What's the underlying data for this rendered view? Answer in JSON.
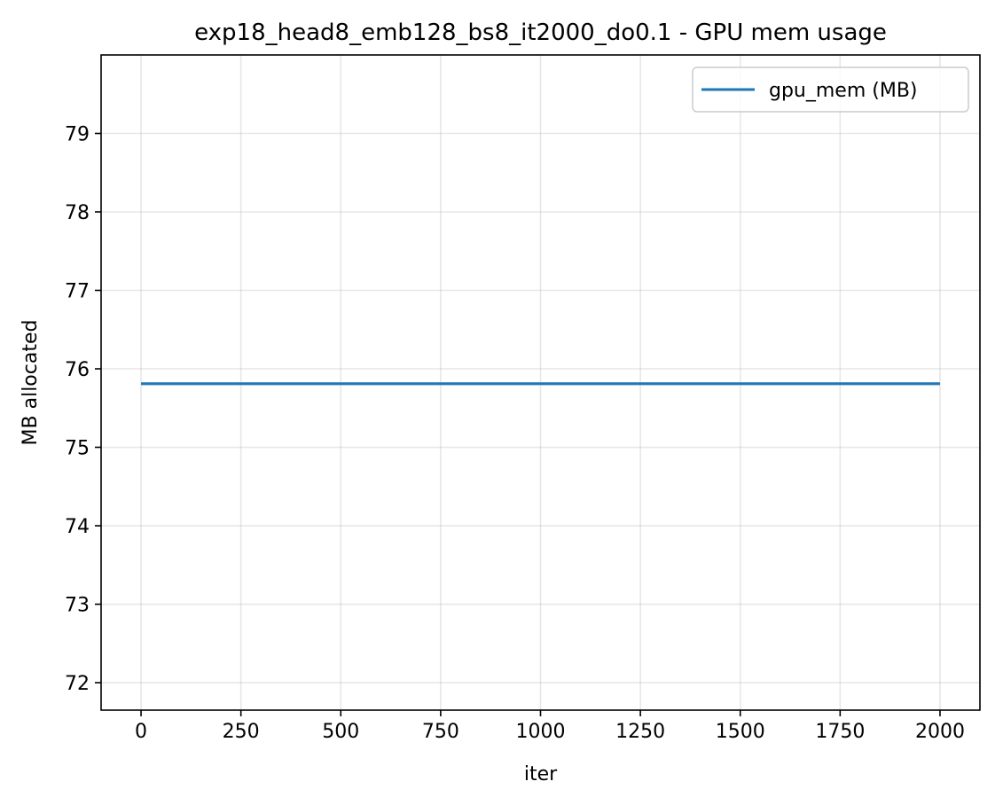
{
  "chart_data": {
    "type": "line",
    "title": "exp18_head8_emb128_bs8_it2000_do0.1 - GPU mem usage",
    "xlabel": "iter",
    "ylabel": "MB allocated",
    "xlim": [
      -100,
      2100
    ],
    "ylim": [
      71.65,
      80.0
    ],
    "xticks": [
      0,
      250,
      500,
      750,
      1000,
      1250,
      1500,
      1750,
      2000
    ],
    "xtick_labels": [
      "0",
      "250",
      "500",
      "750",
      "1000",
      "1250",
      "1500",
      "1750",
      "2000"
    ],
    "yticks": [
      72,
      73,
      74,
      75,
      76,
      77,
      78,
      79
    ],
    "ytick_labels": [
      "72",
      "73",
      "74",
      "75",
      "76",
      "77",
      "78",
      "79"
    ],
    "grid": true,
    "legend_position": "top-right",
    "series": [
      {
        "name": "gpu_mem (MB)",
        "color": "#1f77b4",
        "x": [
          0,
          2000
        ],
        "y": [
          75.81,
          75.81
        ]
      }
    ]
  }
}
